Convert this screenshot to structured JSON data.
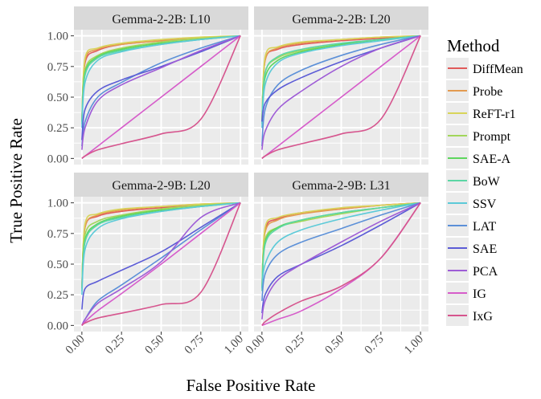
{
  "chart_data": {
    "type": "line",
    "xlabel": "False Positive Rate",
    "ylabel": "True Positive Rate",
    "xlim": [
      0,
      1
    ],
    "ylim": [
      0,
      1
    ],
    "x_ticks": [
      "0.00",
      "0.25",
      "0.50",
      "0.75",
      "1.00"
    ],
    "y_ticks": [
      "0.00",
      "0.25",
      "0.50",
      "0.75",
      "1.00"
    ],
    "grid": true,
    "legend": {
      "title": "Method",
      "placement": "right"
    },
    "methods": [
      {
        "name": "DiffMean",
        "color": "#E05A5A"
      },
      {
        "name": "Probe",
        "color": "#E39A50"
      },
      {
        "name": "ReFT-r1",
        "color": "#D8D45A"
      },
      {
        "name": "Prompt",
        "color": "#A2D65A"
      },
      {
        "name": "SAE-A",
        "color": "#5ED65E"
      },
      {
        "name": "BoW",
        "color": "#5CD6A4"
      },
      {
        "name": "SSV",
        "color": "#5CCAD8"
      },
      {
        "name": "LAT",
        "color": "#5C90D8"
      },
      {
        "name": "SAE",
        "color": "#5C5CD6"
      },
      {
        "name": "PCA",
        "color": "#9E5CD6"
      },
      {
        "name": "IG",
        "color": "#D65CCA"
      },
      {
        "name": "IxG",
        "color": "#D6558E"
      }
    ],
    "x": [
      0,
      0.02,
      0.1,
      0.25,
      0.5,
      0.75,
      1
    ],
    "panels": [
      {
        "title": "Gemma-2-2B: L10",
        "series": [
          [
            0.3,
            0.78,
            0.88,
            0.93,
            0.96,
            0.98,
            1
          ],
          [
            0.3,
            0.8,
            0.89,
            0.93,
            0.96,
            0.98,
            1
          ],
          [
            0.3,
            0.82,
            0.9,
            0.94,
            0.97,
            0.99,
            1
          ],
          [
            0.3,
            0.72,
            0.84,
            0.9,
            0.95,
            0.98,
            1
          ],
          [
            0.3,
            0.7,
            0.83,
            0.89,
            0.94,
            0.97,
            1
          ],
          [
            0.28,
            0.68,
            0.82,
            0.88,
            0.93,
            0.97,
            1
          ],
          [
            0.25,
            0.62,
            0.8,
            0.87,
            0.93,
            0.97,
            1
          ],
          [
            0.1,
            0.3,
            0.5,
            0.62,
            0.78,
            0.9,
            1
          ],
          [
            0.15,
            0.4,
            0.55,
            0.64,
            0.75,
            0.87,
            1
          ],
          [
            0.07,
            0.25,
            0.47,
            0.6,
            0.74,
            0.88,
            1
          ],
          [
            0,
            0.02,
            0.1,
            0.25,
            0.5,
            0.75,
            1
          ],
          [
            0,
            0.02,
            0.07,
            0.12,
            0.2,
            0.32,
            1
          ]
        ]
      },
      {
        "title": "Gemma-2-2B: L20",
        "series": [
          [
            0.3,
            0.8,
            0.89,
            0.93,
            0.96,
            0.98,
            1
          ],
          [
            0.3,
            0.8,
            0.9,
            0.94,
            0.97,
            0.99,
            1
          ],
          [
            0.3,
            0.83,
            0.91,
            0.95,
            0.97,
            0.99,
            1
          ],
          [
            0.3,
            0.7,
            0.82,
            0.88,
            0.93,
            0.97,
            1
          ],
          [
            0.3,
            0.66,
            0.8,
            0.87,
            0.93,
            0.97,
            1
          ],
          [
            0.28,
            0.7,
            0.83,
            0.89,
            0.94,
            0.97,
            1
          ],
          [
            0.25,
            0.6,
            0.78,
            0.86,
            0.92,
            0.96,
            1
          ],
          [
            0.1,
            0.4,
            0.6,
            0.72,
            0.84,
            0.93,
            1
          ],
          [
            0.3,
            0.45,
            0.56,
            0.66,
            0.79,
            0.9,
            1
          ],
          [
            0.07,
            0.22,
            0.4,
            0.55,
            0.75,
            0.9,
            1
          ],
          [
            0,
            0.02,
            0.1,
            0.25,
            0.5,
            0.75,
            1
          ],
          [
            0,
            0.02,
            0.07,
            0.12,
            0.2,
            0.32,
            1
          ]
        ]
      },
      {
        "title": "Gemma-2-9B: L20",
        "series": [
          [
            0.3,
            0.8,
            0.89,
            0.93,
            0.96,
            0.98,
            1
          ],
          [
            0.3,
            0.8,
            0.9,
            0.94,
            0.97,
            0.99,
            1
          ],
          [
            0.3,
            0.83,
            0.91,
            0.95,
            0.97,
            0.99,
            1
          ],
          [
            0.3,
            0.74,
            0.85,
            0.9,
            0.95,
            0.98,
            1
          ],
          [
            0.3,
            0.7,
            0.83,
            0.89,
            0.94,
            0.97,
            1
          ],
          [
            0.28,
            0.68,
            0.82,
            0.88,
            0.93,
            0.97,
            1
          ],
          [
            0.25,
            0.62,
            0.79,
            0.87,
            0.93,
            0.97,
            1
          ],
          [
            0,
            0.05,
            0.2,
            0.33,
            0.55,
            0.78,
            1
          ],
          [
            0.13,
            0.3,
            0.36,
            0.45,
            0.6,
            0.8,
            1
          ],
          [
            0,
            0.05,
            0.18,
            0.3,
            0.52,
            0.88,
            1
          ],
          [
            0,
            0.03,
            0.12,
            0.26,
            0.5,
            0.75,
            1
          ],
          [
            0,
            0.02,
            0.06,
            0.1,
            0.17,
            0.27,
            1
          ]
        ]
      },
      {
        "title": "Gemma-2-9B: L31",
        "series": [
          [
            0.3,
            0.78,
            0.87,
            0.92,
            0.95,
            0.98,
            1
          ],
          [
            0.3,
            0.76,
            0.86,
            0.91,
            0.95,
            0.98,
            1
          ],
          [
            0.3,
            0.8,
            0.88,
            0.92,
            0.96,
            0.98,
            1
          ],
          [
            0.3,
            0.7,
            0.8,
            0.85,
            0.91,
            0.96,
            1
          ],
          [
            0.3,
            0.68,
            0.8,
            0.86,
            0.92,
            0.96,
            1
          ],
          [
            0.28,
            0.66,
            0.79,
            0.86,
            0.92,
            0.96,
            1
          ],
          [
            0.3,
            0.5,
            0.68,
            0.78,
            0.87,
            0.94,
            1
          ],
          [
            0.2,
            0.42,
            0.58,
            0.68,
            0.79,
            0.9,
            1
          ],
          [
            0.1,
            0.25,
            0.4,
            0.5,
            0.65,
            0.82,
            1
          ],
          [
            0.05,
            0.2,
            0.37,
            0.5,
            0.68,
            0.85,
            1
          ],
          [
            0,
            0.01,
            0.05,
            0.12,
            0.3,
            0.55,
            1
          ],
          [
            0,
            0.03,
            0.1,
            0.2,
            0.32,
            0.55,
            1
          ]
        ]
      }
    ]
  }
}
